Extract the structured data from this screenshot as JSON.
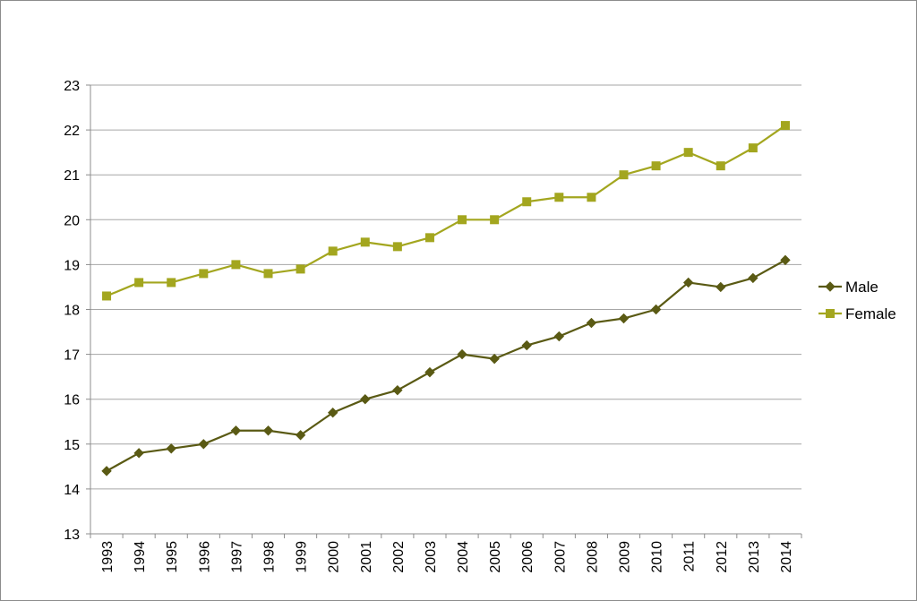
{
  "chart_data": {
    "type": "line",
    "title": "",
    "xlabel": "",
    "ylabel": "",
    "categories": [
      "1993",
      "1994",
      "1995",
      "1996",
      "1997",
      "1998",
      "1999",
      "2000",
      "2001",
      "2002",
      "2003",
      "2004",
      "2005",
      "2006",
      "2007",
      "2008",
      "2009",
      "2010",
      "2011",
      "2012",
      "2013",
      "2014"
    ],
    "ylim": [
      13,
      23
    ],
    "ytick_step": 1,
    "grid": "horizontal",
    "legend_position": "right",
    "series": [
      {
        "name": "Male",
        "marker": "diamond",
        "color": "#5a5a14",
        "values": [
          14.4,
          14.8,
          14.9,
          15.0,
          15.3,
          15.3,
          15.2,
          15.7,
          16.0,
          16.2,
          16.6,
          17.0,
          16.9,
          17.2,
          17.4,
          17.7,
          17.8,
          18.0,
          18.6,
          18.5,
          18.7,
          19.1
        ]
      },
      {
        "name": "Female",
        "marker": "square",
        "color": "#a3a61f",
        "values": [
          18.3,
          18.6,
          18.6,
          18.8,
          19.0,
          18.8,
          18.9,
          19.3,
          19.5,
          19.4,
          19.6,
          20.0,
          20.0,
          20.4,
          20.5,
          20.5,
          21.0,
          21.2,
          21.5,
          21.2,
          21.6,
          22.1
        ]
      }
    ]
  }
}
